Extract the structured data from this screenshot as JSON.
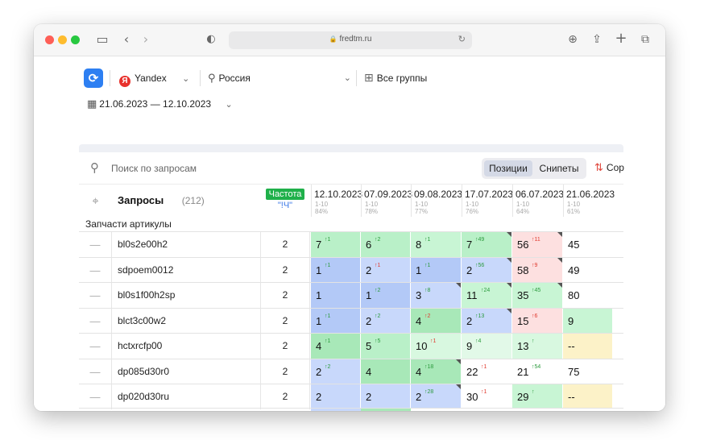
{
  "browser": {
    "url": "fredtm.ru"
  },
  "filters": {
    "engine": "Yandex",
    "engine_logo": "Я",
    "region": "Россия",
    "groups": "Все группы",
    "date_range": "21.06.2023 — 12.10.2023"
  },
  "toolbar": {
    "search_placeholder": "Поиск по запросам",
    "tab_positions": "Позиции",
    "tab_snippets": "Снипеты",
    "sort_label": "Сор"
  },
  "table": {
    "header": {
      "queries_label": "Запросы",
      "queries_count": "(212)",
      "frequency_badge": "Частота",
      "frequency_type": "\"!Ч\""
    },
    "dates": [
      {
        "date": "12.10.2023",
        "range": "1-10",
        "pct": "84%"
      },
      {
        "date": "07.09.2023",
        "range": "1-10",
        "pct": "78%"
      },
      {
        "date": "09.08.2023",
        "range": "1-10",
        "pct": "77%"
      },
      {
        "date": "17.07.2023",
        "range": "1-10",
        "pct": "76%"
      },
      {
        "date": "06.07.2023",
        "range": "1-10",
        "pct": "64%"
      },
      {
        "date": "21.06.2023",
        "range": "1-10",
        "pct": "61%"
      }
    ],
    "group_label": "Запчасти артикулы",
    "dash": "—",
    "rows": [
      {
        "keyword": "bl0s2e00h2",
        "freq": "2",
        "cells": [
          {
            "v": "7",
            "d": "↑1",
            "dir": "up",
            "bg": "#b9f0c8"
          },
          {
            "v": "6",
            "d": "↑2",
            "dir": "up",
            "bg": "#b9f0c8"
          },
          {
            "v": "8",
            "d": "↑1",
            "dir": "up",
            "bg": "#c8f5d4"
          },
          {
            "v": "7",
            "d": "↑49",
            "dir": "up",
            "bg": "#b9f0c8",
            "corner": true
          },
          {
            "v": "56",
            "d": "↑11",
            "dir": "down",
            "bg": "#fde0e0",
            "corner": true
          },
          {
            "v": "45",
            "d": "",
            "dir": "",
            "bg": "#ffffff"
          }
        ]
      },
      {
        "keyword": "sdpoem0012",
        "freq": "2",
        "cells": [
          {
            "v": "1",
            "d": "↑1",
            "dir": "up",
            "bg": "#b3c9f7"
          },
          {
            "v": "2",
            "d": "↑1",
            "dir": "down",
            "bg": "#c8d8fb"
          },
          {
            "v": "1",
            "d": "↑1",
            "dir": "up",
            "bg": "#b3c9f7"
          },
          {
            "v": "2",
            "d": "↑56",
            "dir": "up",
            "bg": "#c8d8fb",
            "corner": true
          },
          {
            "v": "58",
            "d": "↑9",
            "dir": "down",
            "bg": "#fde0e0",
            "corner": true
          },
          {
            "v": "49",
            "d": "",
            "dir": "",
            "bg": "#ffffff"
          }
        ]
      },
      {
        "keyword": "bl0s1f00h2sp",
        "freq": "2",
        "cells": [
          {
            "v": "1",
            "d": "",
            "dir": "",
            "bg": "#b3c9f7"
          },
          {
            "v": "1",
            "d": "↑2",
            "dir": "up",
            "bg": "#b3c9f7"
          },
          {
            "v": "3",
            "d": "↑8",
            "dir": "up",
            "bg": "#c8d8fb",
            "corner": true
          },
          {
            "v": "11",
            "d": "↑24",
            "dir": "up",
            "bg": "#c8f5d4",
            "corner": true
          },
          {
            "v": "35",
            "d": "↑45",
            "dir": "up",
            "bg": "#c8f5d4",
            "corner": true
          },
          {
            "v": "80",
            "d": "",
            "dir": "",
            "bg": "#ffffff"
          }
        ]
      },
      {
        "keyword": "blct3c00w2",
        "freq": "2",
        "cells": [
          {
            "v": "1",
            "d": "↑1",
            "dir": "up",
            "bg": "#b3c9f7"
          },
          {
            "v": "2",
            "d": "↑2",
            "dir": "up",
            "bg": "#c8d8fb"
          },
          {
            "v": "4",
            "d": "↑2",
            "dir": "down",
            "bg": "#a8e8b8"
          },
          {
            "v": "2",
            "d": "↑13",
            "dir": "up",
            "bg": "#c8d8fb",
            "corner": true
          },
          {
            "v": "15",
            "d": "↑6",
            "dir": "down",
            "bg": "#fde0e0"
          },
          {
            "v": "9",
            "d": "",
            "dir": "",
            "bg": "#c8f5d4"
          }
        ]
      },
      {
        "keyword": "hctxrcfp00",
        "freq": "2",
        "cells": [
          {
            "v": "4",
            "d": "↑1",
            "dir": "up",
            "bg": "#a8e8b8"
          },
          {
            "v": "5",
            "d": "↑5",
            "dir": "up",
            "bg": "#b9f0c8"
          },
          {
            "v": "10",
            "d": "↑1",
            "dir": "down",
            "bg": "#d8f8e0"
          },
          {
            "v": "9",
            "d": "↑4",
            "dir": "up",
            "bg": "#e2f9e8"
          },
          {
            "v": "13",
            "d": "↑",
            "dir": "up",
            "bg": "#d8f8e0"
          },
          {
            "v": "--",
            "d": "",
            "dir": "",
            "bg": "#fcf2c8"
          }
        ]
      },
      {
        "keyword": "dp085d30r0",
        "freq": "2",
        "cells": [
          {
            "v": "2",
            "d": "↑2",
            "dir": "up",
            "bg": "#c8d8fb"
          },
          {
            "v": "4",
            "d": "",
            "dir": "",
            "bg": "#a8e8b8"
          },
          {
            "v": "4",
            "d": "↑18",
            "dir": "up",
            "bg": "#a8e8b8",
            "corner": true
          },
          {
            "v": "22",
            "d": "↑1",
            "dir": "down",
            "bg": "#ffffff"
          },
          {
            "v": "21",
            "d": "↑54",
            "dir": "up",
            "bg": "#ffffff"
          },
          {
            "v": "75",
            "d": "",
            "dir": "",
            "bg": "#ffffff"
          }
        ]
      },
      {
        "keyword": "dp020d30ru",
        "freq": "2",
        "cells": [
          {
            "v": "2",
            "d": "",
            "dir": "",
            "bg": "#c8d8fb"
          },
          {
            "v": "2",
            "d": "",
            "dir": "",
            "bg": "#c8d8fb"
          },
          {
            "v": "2",
            "d": "↑28",
            "dir": "up",
            "bg": "#c8d8fb",
            "corner": true
          },
          {
            "v": "30",
            "d": "↑1",
            "dir": "down",
            "bg": "#ffffff"
          },
          {
            "v": "29",
            "d": "↑",
            "dir": "up",
            "bg": "#c8f5d4"
          },
          {
            "v": "--",
            "d": "",
            "dir": "",
            "bg": "#fcf2c8"
          }
        ]
      }
    ],
    "bottom_colors": [
      "#c8d8fb",
      "#a8e8b8",
      "#ffffff",
      "#ffffff",
      "#ffffff",
      "#ffffff"
    ]
  },
  "colors": {
    "accent": "#2d7ff2",
    "frequency_badge": "#1fb04a",
    "delta_up": "#2b9a3d",
    "delta_down": "#e03b2f"
  }
}
